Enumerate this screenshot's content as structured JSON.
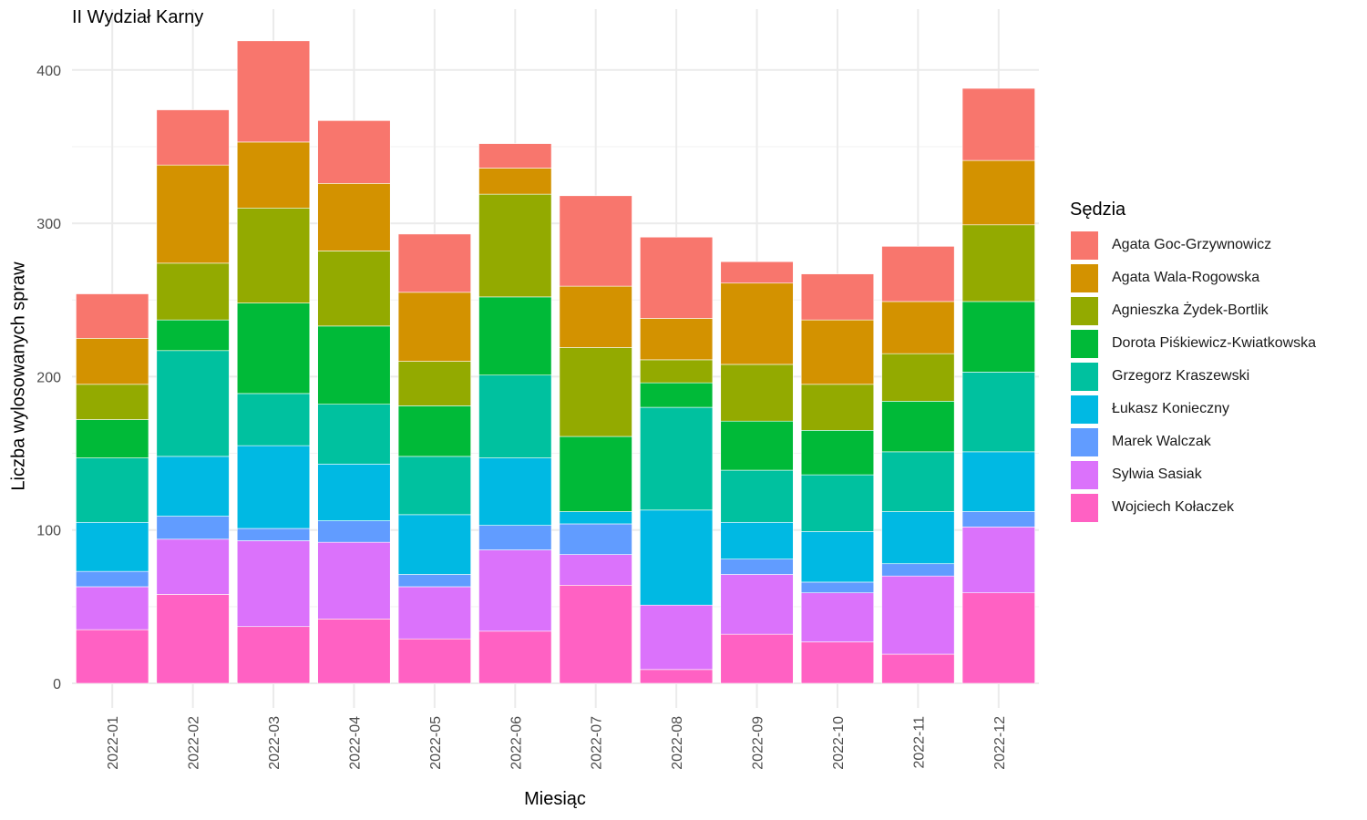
{
  "chart_data": {
    "type": "bar",
    "stacked": true,
    "title": "II Wydział Karny",
    "xlabel": "Miesiąc",
    "ylabel": "Liczba wylosowanych spraw",
    "ylim": [
      0,
      430
    ],
    "yticks": [
      0,
      100,
      200,
      300,
      400
    ],
    "grid": true,
    "legend_title": "Sędzia",
    "legend_position": "right",
    "categories": [
      "2022-01",
      "2022-02",
      "2022-03",
      "2022-04",
      "2022-05",
      "2022-06",
      "2022-07",
      "2022-08",
      "2022-09",
      "2022-10",
      "2022-11",
      "2022-12"
    ],
    "series": [
      {
        "name": "Wojciech Kołaczek",
        "color": "#FF61C3",
        "values": [
          35,
          58,
          37,
          42,
          29,
          34,
          64,
          9,
          32,
          27,
          19,
          59
        ]
      },
      {
        "name": "Sylwia Sasiak",
        "color": "#DB72FB",
        "values": [
          28,
          36,
          56,
          50,
          34,
          53,
          20,
          42,
          39,
          32,
          51,
          43
        ]
      },
      {
        "name": "Marek Walczak",
        "color": "#619CFF",
        "values": [
          10,
          15,
          8,
          14,
          8,
          16,
          20,
          0,
          10,
          7,
          8,
          10
        ]
      },
      {
        "name": "Łukasz Konieczny",
        "color": "#00B9E3",
        "values": [
          32,
          39,
          54,
          37,
          39,
          44,
          8,
          62,
          24,
          33,
          34,
          39
        ]
      },
      {
        "name": "Grzegorz Kraszewski",
        "color": "#00C19F",
        "values": [
          42,
          69,
          34,
          39,
          38,
          54,
          0,
          67,
          34,
          37,
          39,
          52
        ]
      },
      {
        "name": "Dorota Piśkiewicz-Kwiatkowska",
        "color": "#00BA38",
        "values": [
          25,
          20,
          59,
          51,
          33,
          51,
          49,
          16,
          32,
          29,
          33,
          46
        ]
      },
      {
        "name": "Agnieszka Żydek-Bortlik",
        "color": "#93AA00",
        "values": [
          23,
          37,
          62,
          49,
          29,
          67,
          58,
          15,
          37,
          30,
          31,
          50
        ]
      },
      {
        "name": "Agata Wala-Rogowska",
        "color": "#D39200",
        "values": [
          30,
          64,
          43,
          44,
          45,
          17,
          40,
          27,
          53,
          42,
          34,
          42
        ]
      },
      {
        "name": "Agata Goc-Grzywnowicz",
        "color": "#F8766D",
        "values": [
          29,
          36,
          66,
          41,
          38,
          16,
          59,
          53,
          14,
          30,
          36,
          47
        ]
      }
    ]
  }
}
